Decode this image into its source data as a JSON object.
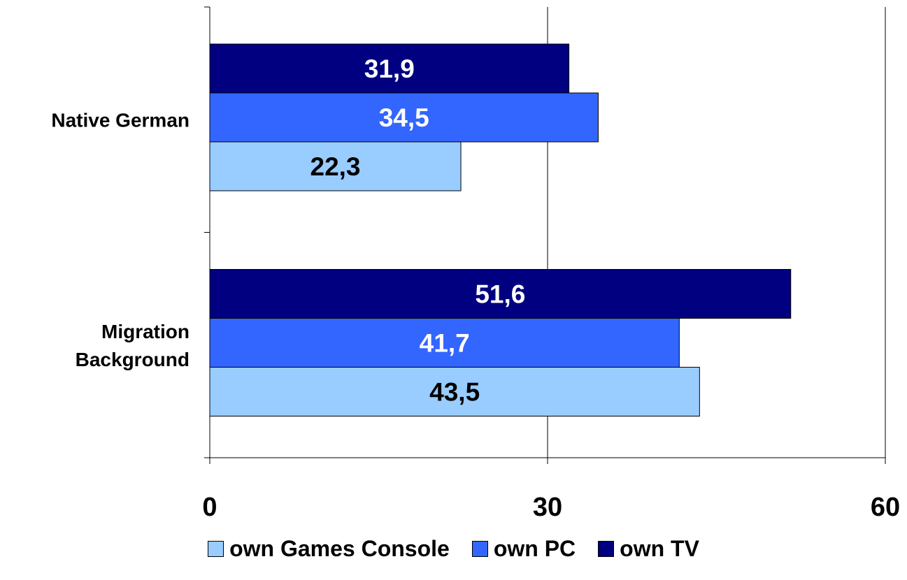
{
  "chart_data": {
    "type": "bar",
    "orientation": "horizontal",
    "categories": [
      "Native German",
      "Migration Background"
    ],
    "category_lines": [
      [
        "Native German"
      ],
      [
        "Migration",
        "Background"
      ]
    ],
    "series": [
      {
        "name": "own TV",
        "values": [
          31.9,
          51.6
        ],
        "labels": [
          "31,9",
          "51,6"
        ],
        "color": "#000080",
        "label_color": "#ffffff"
      },
      {
        "name": "own PC",
        "values": [
          34.5,
          41.7
        ],
        "labels": [
          "34,5",
          "41,7"
        ],
        "color": "#3366ff",
        "label_color": "#ffffff"
      },
      {
        "name": "own Games Console",
        "values": [
          22.3,
          43.5
        ],
        "labels": [
          "22,3",
          "43,5"
        ],
        "color": "#99ccff",
        "label_color": "#000000"
      }
    ],
    "xlim": [
      0,
      60
    ],
    "xticks": [
      0,
      30,
      60
    ],
    "xtick_labels": [
      "0",
      "30",
      "60"
    ],
    "grid": true,
    "legend_position": "bottom",
    "legend_order": [
      "own Games Console",
      "own PC",
      "own TV"
    ]
  }
}
